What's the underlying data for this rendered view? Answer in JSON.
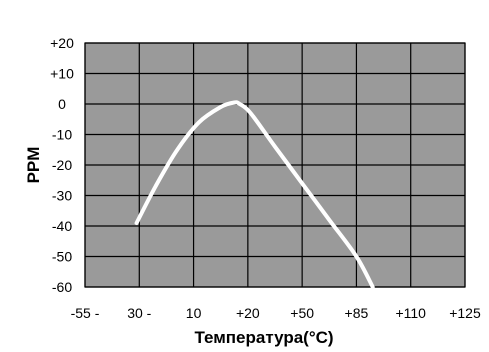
{
  "chart_data": {
    "type": "line",
    "title": "",
    "xlabel": "Температура(°C)",
    "ylabel": "PPM",
    "x_tick_labels": [
      "-55 -",
      "30 -",
      "10",
      "+20",
      "+50",
      "+85",
      "+110",
      "+125"
    ],
    "y_tick_labels": [
      "+20",
      "+10",
      "0",
      "-10",
      "-20",
      "-30",
      "-40",
      "-50",
      "-60"
    ],
    "y_ticks": [
      20,
      10,
      0,
      -10,
      -20,
      -30,
      -40,
      -50,
      -60
    ],
    "ylim": [
      -60,
      20
    ],
    "xlim_index": [
      0,
      7
    ],
    "grid": true,
    "legend": "none",
    "colors": {
      "plot_background": "#9a9a9a",
      "grid": "#000000",
      "curve": "#ffffff"
    },
    "series": [
      {
        "x_index": [
          0.95,
          1.3,
          1.7,
          2.1,
          2.5,
          2.75,
          2.85,
          3.05,
          3.5,
          4.0,
          4.5,
          5.0,
          5.3
        ],
        "values": [
          -39,
          -27,
          -15,
          -6,
          -1,
          0.5,
          0,
          -3,
          -14,
          -26,
          -38,
          -50,
          -60
        ]
      }
    ]
  }
}
